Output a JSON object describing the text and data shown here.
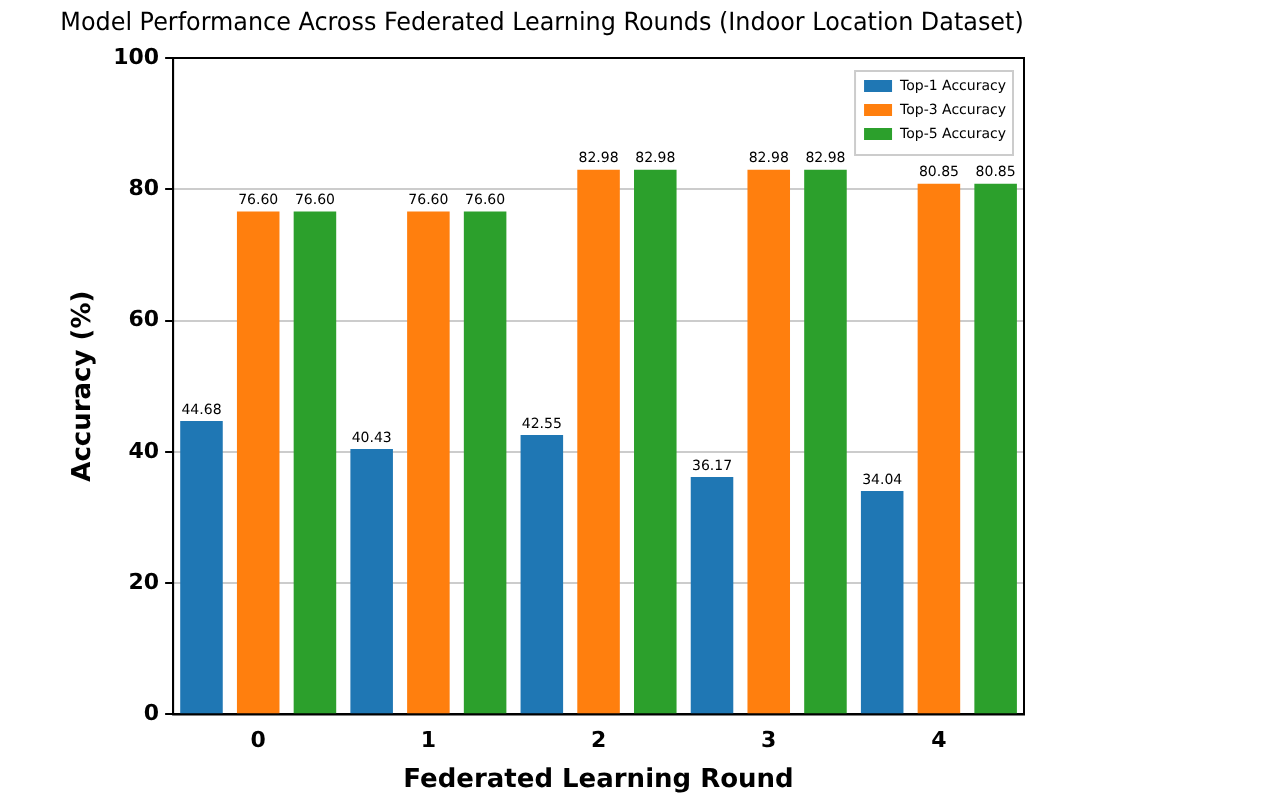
{
  "chart_data": {
    "type": "bar",
    "title": "Model Performance Across Federated Learning Rounds (Indoor Location Dataset)",
    "xlabel": "Federated Learning Round",
    "ylabel": "Accuracy (%)",
    "categories": [
      "0",
      "1",
      "2",
      "3",
      "4"
    ],
    "series": [
      {
        "name": "Top-1 Accuracy",
        "color": "#1f77b4",
        "values": [
          44.68,
          40.43,
          42.55,
          36.17,
          34.04
        ],
        "value_labels": [
          "44.68",
          "40.43",
          "42.55",
          "36.17",
          "34.04"
        ]
      },
      {
        "name": "Top-3 Accuracy",
        "color": "#ff7f0e",
        "values": [
          76.6,
          76.6,
          82.98,
          82.98,
          80.85
        ],
        "value_labels": [
          "76.60",
          "76.60",
          "82.98",
          "82.98",
          "80.85"
        ]
      },
      {
        "name": "Top-5 Accuracy",
        "color": "#2ca02c",
        "values": [
          76.6,
          76.6,
          82.98,
          82.98,
          80.85
        ],
        "value_labels": [
          "76.60",
          "76.60",
          "82.98",
          "82.98",
          "80.85"
        ]
      }
    ],
    "ylim": [
      0,
      100
    ],
    "yticks": [
      0,
      20,
      40,
      60,
      80,
      100
    ],
    "grid": "y",
    "legend": "top right"
  }
}
